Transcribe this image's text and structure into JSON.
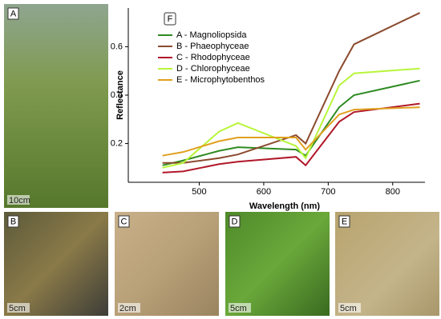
{
  "chart_data": {
    "type": "line",
    "xlabel": "Wavelength (nm)",
    "ylabel": "Reflectance",
    "legend_title": "F",
    "x": [
      443,
      475,
      531,
      560,
      650,
      665,
      717,
      740,
      842
    ],
    "series": [
      {
        "name": "A - Magnoliopsida",
        "color": "#2e8b22",
        "values": [
          0.11,
          0.13,
          0.17,
          0.185,
          0.175,
          0.15,
          0.35,
          0.4,
          0.46
        ]
      },
      {
        "name": "B - Phaeophyceae",
        "color": "#8b4a2e",
        "values": [
          0.12,
          0.12,
          0.14,
          0.155,
          0.235,
          0.2,
          0.5,
          0.61,
          0.74
        ]
      },
      {
        "name": "C - Rhodophyceae",
        "color": "#b0182a",
        "values": [
          0.08,
          0.085,
          0.115,
          0.125,
          0.145,
          0.11,
          0.29,
          0.33,
          0.365
        ]
      },
      {
        "name": "D - Chlorophyceae",
        "color": "#b8f53a",
        "values": [
          0.1,
          0.12,
          0.25,
          0.285,
          0.19,
          0.14,
          0.44,
          0.49,
          0.51
        ]
      },
      {
        "name": "E - Microphytobenthos",
        "color": "#e0a020",
        "values": [
          0.15,
          0.165,
          0.21,
          0.225,
          0.225,
          0.175,
          0.32,
          0.34,
          0.35
        ]
      }
    ],
    "xlim": [
      390,
      850
    ],
    "xticks": [
      500,
      600,
      700,
      800
    ],
    "ylim": [
      0.04,
      0.76
    ],
    "yticks": [
      0.2,
      0.4,
      0.6
    ]
  },
  "panels": [
    {
      "label": "A",
      "scale": "10cm"
    },
    {
      "label": "B",
      "scale": "5cm"
    },
    {
      "label": "C",
      "scale": "2cm"
    },
    {
      "label": "D",
      "scale": "5cm"
    },
    {
      "label": "E",
      "scale": "5cm"
    }
  ]
}
